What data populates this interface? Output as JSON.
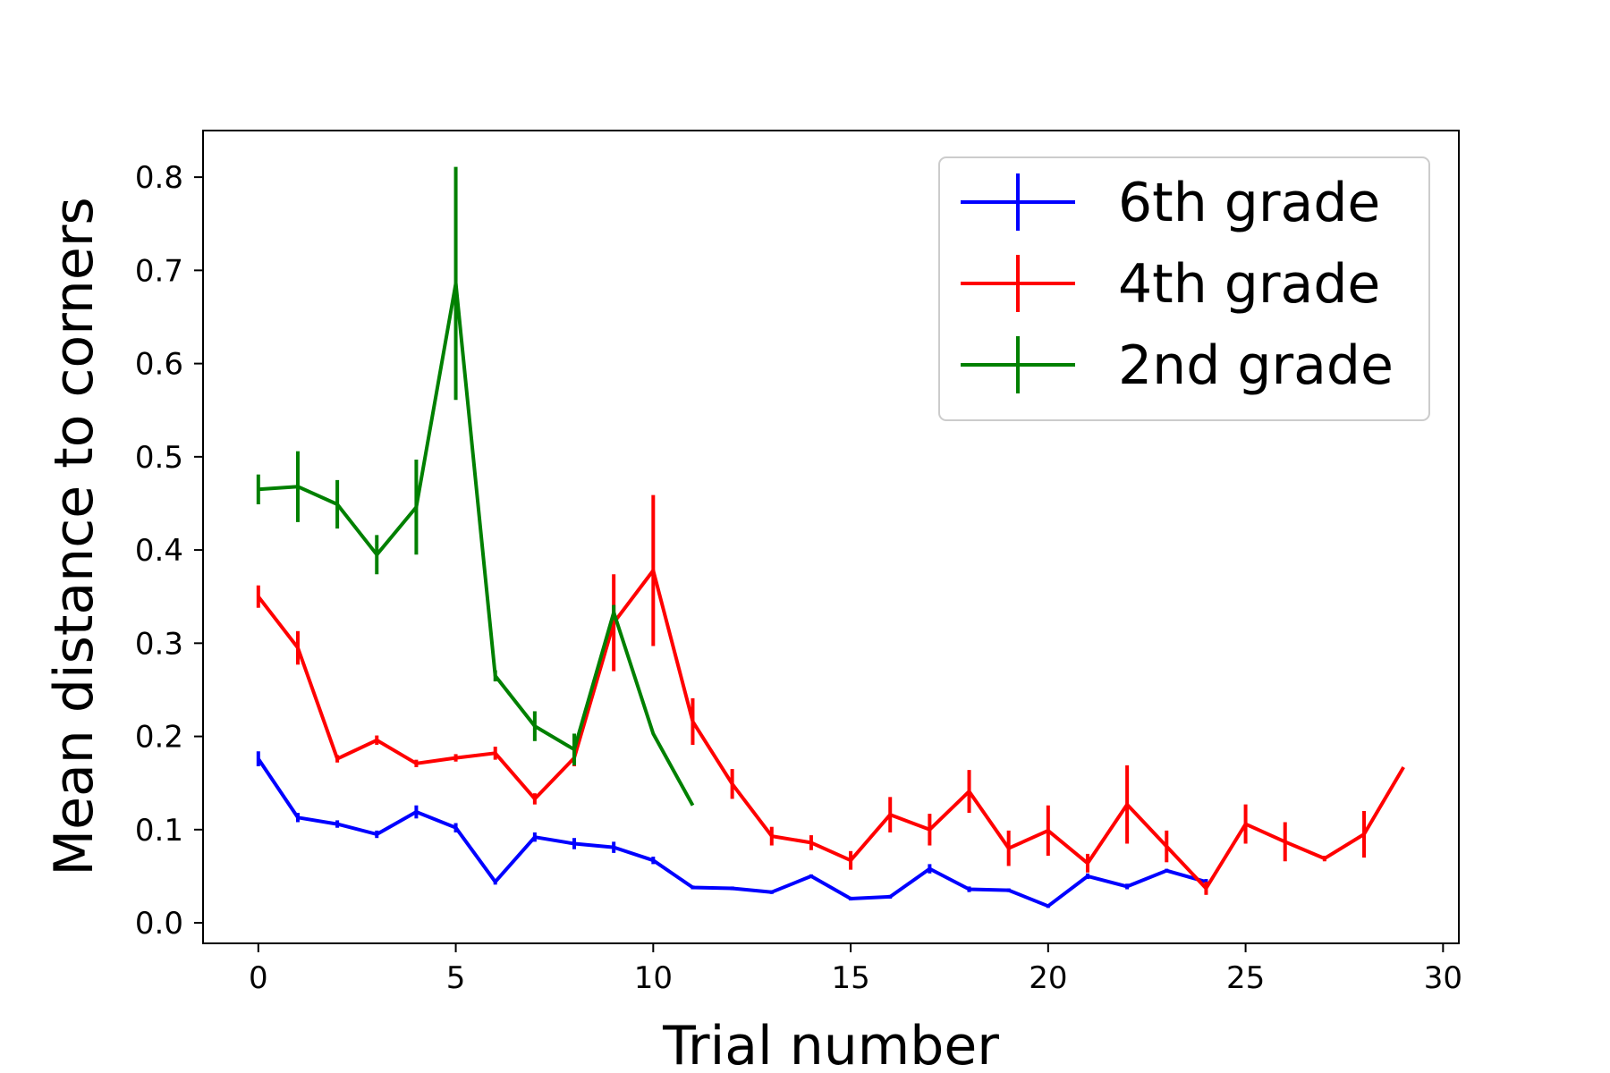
{
  "chart_data": {
    "type": "line",
    "title": "",
    "xlabel": "Trial number",
    "ylabel": "Mean distance to corners",
    "xlim": [
      -1.4,
      30.4
    ],
    "ylim": [
      -0.022,
      0.85
    ],
    "xticks": [
      0,
      5,
      10,
      15,
      20,
      25,
      30
    ],
    "yticks": [
      0.0,
      0.1,
      0.2,
      0.3,
      0.4,
      0.5,
      0.6,
      0.7,
      0.8
    ],
    "grid": false,
    "legend_position": "top-right",
    "series": [
      {
        "name": "6th grade",
        "color": "#0000ff",
        "x": [
          0,
          1,
          2,
          3,
          4,
          5,
          6,
          7,
          8,
          9,
          10,
          11,
          12,
          13,
          14,
          15,
          16,
          17,
          18,
          19,
          20,
          21,
          22,
          23,
          24
        ],
        "y": [
          0.176,
          0.113,
          0.106,
          0.095,
          0.119,
          0.102,
          0.044,
          0.092,
          0.085,
          0.081,
          0.067,
          0.038,
          0.037,
          0.033,
          0.05,
          0.026,
          0.028,
          0.058,
          0.036,
          0.035,
          0.018,
          0.05,
          0.039,
          0.056,
          0.044
        ],
        "yerr": [
          0.008,
          0.005,
          0.004,
          0.004,
          0.007,
          0.005,
          0.003,
          0.005,
          0.006,
          0.006,
          0.004,
          0.002,
          0.002,
          0.002,
          0.002,
          0.002,
          0.002,
          0.005,
          0.003,
          0.002,
          0.002,
          0.003,
          0.003,
          0.002,
          0.003
        ]
      },
      {
        "name": "4th grade",
        "color": "#ff0000",
        "x": [
          0,
          1,
          2,
          3,
          4,
          5,
          6,
          7,
          8,
          9,
          10,
          11,
          12,
          13,
          14,
          15,
          16,
          17,
          18,
          19,
          20,
          21,
          22,
          23,
          24,
          25,
          26,
          27,
          28,
          29
        ],
        "y": [
          0.35,
          0.295,
          0.176,
          0.196,
          0.171,
          0.177,
          0.182,
          0.133,
          0.177,
          0.322,
          0.378,
          0.216,
          0.149,
          0.093,
          0.086,
          0.067,
          0.116,
          0.1,
          0.141,
          0.08,
          0.099,
          0.064,
          0.127,
          0.082,
          0.037,
          0.106,
          0.087,
          0.069,
          0.095,
          0.167
        ],
        "yerr": [
          0.012,
          0.018,
          0.004,
          0.005,
          0.004,
          0.004,
          0.007,
          0.006,
          0.009,
          0.052,
          0.081,
          0.025,
          0.016,
          0.01,
          0.008,
          0.01,
          0.019,
          0.017,
          0.023,
          0.019,
          0.027,
          0.01,
          0.042,
          0.017,
          0.007,
          0.021,
          0.021,
          0.003,
          0.025,
          0.0
        ]
      },
      {
        "name": "2nd grade",
        "color": "#008000",
        "x": [
          0,
          1,
          2,
          3,
          4,
          5,
          6,
          7,
          8,
          9,
          10,
          11
        ],
        "y": [
          0.465,
          0.468,
          0.449,
          0.395,
          0.446,
          0.686,
          0.265,
          0.211,
          0.186,
          0.333,
          0.203,
          0.126
        ],
        "yerr": [
          0.016,
          0.038,
          0.026,
          0.021,
          0.051,
          0.125,
          0.006,
          0.016,
          0.017,
          0.008,
          0.0,
          0.0
        ]
      }
    ]
  }
}
